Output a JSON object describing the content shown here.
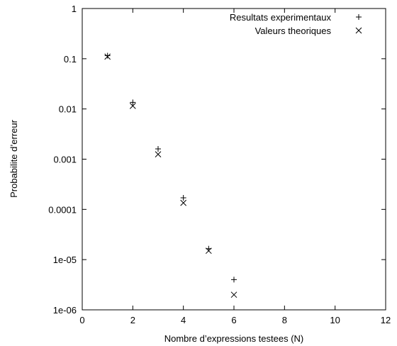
{
  "chart_data": {
    "type": "scatter",
    "xlabel": "Nombre d’expressions testees (N)",
    "ylabel": "Probabilite d’erreur",
    "xlim": [
      0,
      12
    ],
    "ylim": [
      1e-06,
      1
    ],
    "yscale": "log",
    "grid": false,
    "legend_position": "top-right",
    "x_ticks": [
      0,
      2,
      4,
      6,
      8,
      10,
      12
    ],
    "x_tick_labels": [
      "0",
      "2",
      "4",
      "6",
      "8",
      "10",
      "12"
    ],
    "y_ticks": [
      1,
      0.1,
      0.01,
      0.001,
      0.0001,
      1e-05,
      1e-06
    ],
    "y_tick_labels": [
      "1",
      "0.1",
      "0.01",
      "0.001",
      "0.0001",
      "1e-05",
      "1e-06"
    ],
    "series": [
      {
        "name": "Resultats experimentaux",
        "marker": "plus",
        "x": [
          1,
          2,
          3,
          4,
          5,
          6
        ],
        "y": [
          0.115,
          0.0135,
          0.0016,
          0.00017,
          1.65e-05,
          4e-06
        ]
      },
      {
        "name": "Valeurs theoriques",
        "marker": "cross",
        "x": [
          1,
          2,
          3,
          4,
          5,
          6
        ],
        "y": [
          0.11,
          0.0115,
          0.00125,
          0.000135,
          1.5e-05,
          2e-06
        ]
      }
    ]
  }
}
